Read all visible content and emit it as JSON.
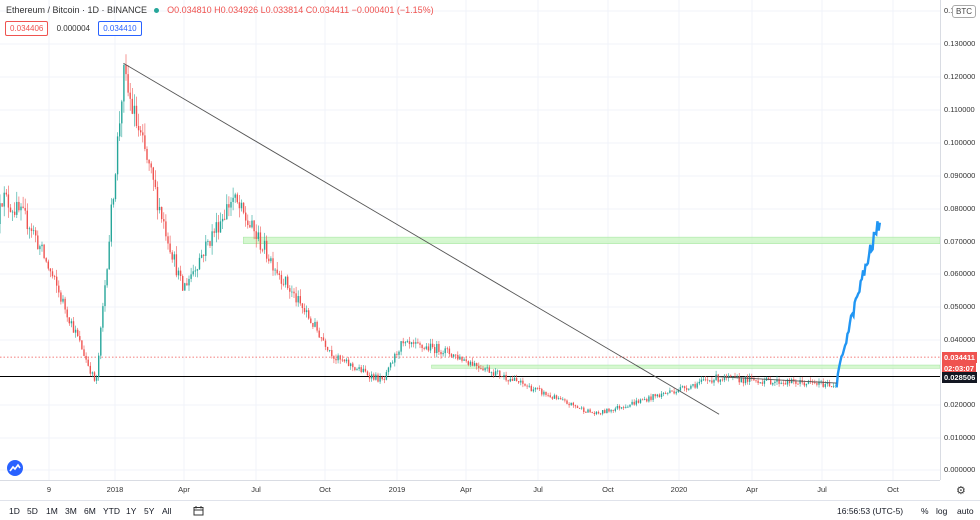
{
  "header": {
    "symbol": "Ethereum / Bitcoin · 1D · BINANCE",
    "ohlc": "O0.034810 H0.034926 L0.033814 C0.034411 −0.000401 (−1.15%)",
    "bid": "0.034406",
    "spread": "0.000004",
    "ask": "0.034410",
    "currency_badge": "BTC"
  },
  "colors": {
    "up": "#26a69a",
    "down": "#ef5350",
    "projection": "#2196f3",
    "zone": "#c8f5c0",
    "price_line": "#ef5350"
  },
  "price_axis": {
    "ticks": [
      "0.140000",
      "0.130000",
      "0.120000",
      "0.110000",
      "0.100000",
      "0.090000",
      "0.080000",
      "0.070000",
      "0.060000",
      "0.050000",
      "0.040000",
      "0.020000",
      "0.010000",
      "0.000000"
    ],
    "last_price_label": "0.034411",
    "countdown_label": "02:03:07",
    "crosshair_label": "0.028506"
  },
  "time_axis": {
    "ticks": [
      "9",
      "2018",
      "Apr",
      "Jul",
      "Oct",
      "2019",
      "Apr",
      "Jul",
      "Oct",
      "2020",
      "Apr",
      "Jul",
      "Oct"
    ]
  },
  "bottom_bar": {
    "timeframes": [
      "1D",
      "5D",
      "1M",
      "3M",
      "6M",
      "YTD",
      "1Y",
      "5Y",
      "All"
    ],
    "clock": "16:56:53 (UTC-5)",
    "percent": "%",
    "log": "log",
    "auto": "auto"
  },
  "chart_data": {
    "type": "candlestick",
    "y_scale": "linear",
    "ylim": [
      0.0,
      0.14
    ],
    "x_range": [
      "2017-08",
      "2020-10"
    ],
    "key_points": [
      {
        "date": "2017-09",
        "close": 0.075
      },
      {
        "date": "2017-11",
        "close": 0.04
      },
      {
        "date": "2017-12-08",
        "close": 0.026
      },
      {
        "date": "2018-01-12",
        "close": 0.12
      },
      {
        "date": "2018-03-30",
        "close": 0.055
      },
      {
        "date": "2018-06-01",
        "close": 0.083
      },
      {
        "date": "2018-08-15",
        "close": 0.055
      },
      {
        "date": "2018-10-15",
        "close": 0.034
      },
      {
        "date": "2018-12-15",
        "close": 0.027
      },
      {
        "date": "2019-01-05",
        "close": 0.038
      },
      {
        "date": "2019-02-25",
        "close": 0.037
      },
      {
        "date": "2019-05-15",
        "close": 0.029
      },
      {
        "date": "2019-08-01",
        "close": 0.021
      },
      {
        "date": "2019-09-15",
        "close": 0.017
      },
      {
        "date": "2020-02-15",
        "close": 0.028
      },
      {
        "date": "2020-07-20",
        "close": 0.026
      },
      {
        "date": "2020-09-15",
        "close": 0.077
      }
    ],
    "last_close": 0.034411,
    "support_zones": [
      [
        0.069,
        0.071
      ],
      [
        0.031,
        0.032
      ]
    ],
    "horizontal_level": 0.028506,
    "trendline": {
      "from": [
        "2018-01-12",
        0.124
      ],
      "to": [
        "2020-02-20",
        0.017
      ]
    }
  }
}
